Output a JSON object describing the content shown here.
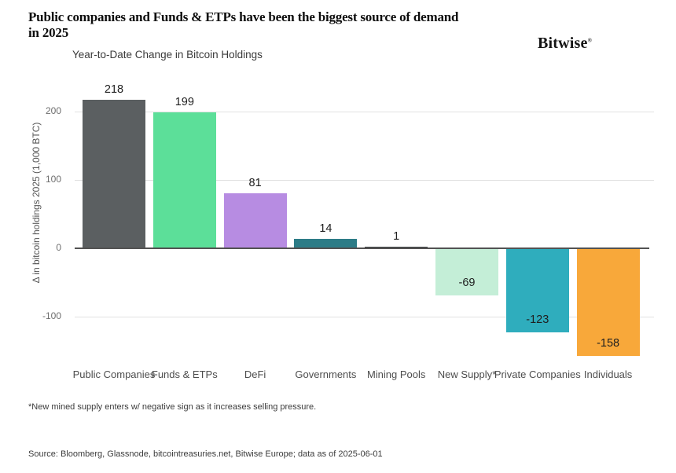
{
  "header": {
    "title": "Public companies and Funds & ETPs have been the biggest source of demand in 2025",
    "brand": "Bitwise",
    "brand_mark": "®"
  },
  "chart_data": {
    "type": "bar",
    "title": "Year-to-Date Change in Bitcoin Holdings",
    "categories": [
      "Public Companies",
      "Funds & ETPs",
      "DeFi",
      "Governments",
      "Mining Pools",
      "New Supply*",
      "Private Companies",
      "Individuals"
    ],
    "values": [
      218,
      199,
      81,
      14,
      1,
      -69,
      -123,
      -158
    ],
    "bar_colors": [
      "#5b5f61",
      "#5cdf99",
      "#b78ce2",
      "#2d7c87",
      "#44484a",
      "#c4eed7",
      "#2fadbd",
      "#f8a83a"
    ],
    "value_labels": [
      "218",
      "199",
      "81",
      "14",
      "1",
      "-69",
      "-123",
      "-158"
    ],
    "ylabel": "Δ in bitcoin holdings 2025 (1,000 BTC)",
    "xlabel": "",
    "ylim": [
      -175,
      240
    ],
    "yticks": [
      200,
      100,
      0,
      -100
    ],
    "grid": "horizontal",
    "legend": "none"
  },
  "footer": {
    "footnote": "*New mined supply enters w/ negative sign as it increases selling pressure.",
    "source": "Source: Bloomberg, Glassnode, bitcointreasuries.net, Bitwise Europe; data as of 2025-06-01"
  }
}
